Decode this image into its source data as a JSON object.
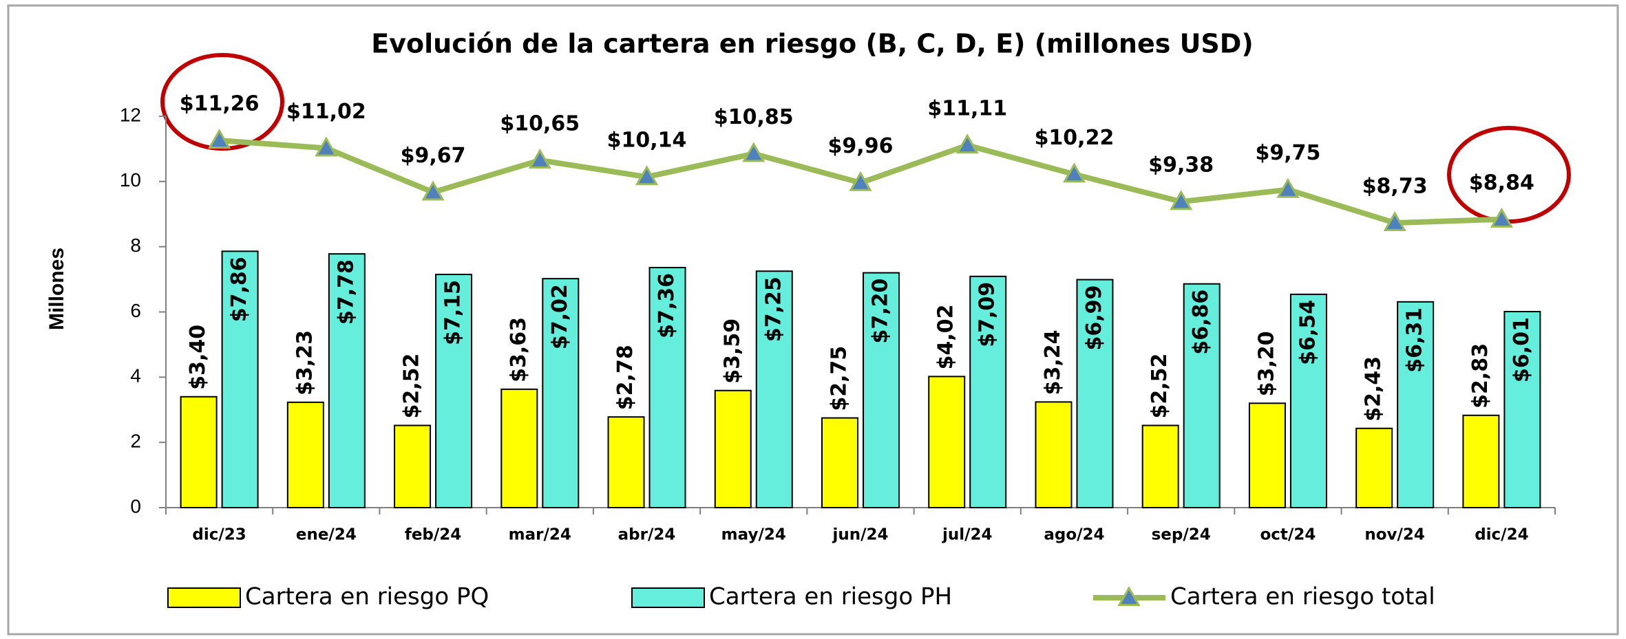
{
  "chart_data": {
    "type": "bar_line",
    "title": "Evolución de la cartera en riesgo (B, C, D, E) (millones USD)",
    "y_label": "Millones",
    "categories": [
      "dic/23",
      "ene/24",
      "feb/24",
      "mar/24",
      "abr/24",
      "may/24",
      "jun/24",
      "jul/24",
      "ago/24",
      "sep/24",
      "oct/24",
      "nov/24",
      "dic/24"
    ],
    "ylim": [
      0,
      12
    ],
    "yticks": [
      0,
      2,
      4,
      6,
      8,
      10,
      12
    ],
    "grid": false,
    "legend": "bottom",
    "series": [
      {
        "name": "Cartera en riesgo PQ",
        "type": "bar",
        "color": "#ffff00",
        "values": [
          3.4,
          3.23,
          2.52,
          3.63,
          2.78,
          3.59,
          2.75,
          4.02,
          3.24,
          2.52,
          3.2,
          2.43,
          2.83
        ],
        "value_labels": [
          "$3,40",
          "$3,23",
          "$2,52",
          "$3,63",
          "$2,78",
          "$3,59",
          "$2,75",
          "$4,02",
          "$3,24",
          "$2,52",
          "$3,20",
          "$2,43",
          "$2,83"
        ]
      },
      {
        "name": "Cartera en riesgo PH",
        "type": "bar",
        "color": "#66eedc",
        "values": [
          7.86,
          7.78,
          7.15,
          7.02,
          7.36,
          7.25,
          7.2,
          7.09,
          6.99,
          6.86,
          6.54,
          6.31,
          6.01
        ],
        "value_labels": [
          "$7,86",
          "$7,78",
          "$7,15",
          "$7,02",
          "$7,36",
          "$7,25",
          "$7,20",
          "$7,09",
          "$6,99",
          "$6,86",
          "$6,54",
          "$6,31",
          "$6,01"
        ]
      },
      {
        "name": "Cartera en riesgo total",
        "type": "line",
        "color": "#9bbb59",
        "marker_color": "#4f81bd",
        "values": [
          11.26,
          11.02,
          9.67,
          10.65,
          10.14,
          10.85,
          9.96,
          11.11,
          10.22,
          9.38,
          9.75,
          8.73,
          8.84
        ],
        "value_labels": [
          "$11,26",
          "$11,02",
          "$9,67",
          "$10,65",
          "$10,14",
          "$10,85",
          "$9,96",
          "$11,11",
          "$10,22",
          "$9,38",
          "$9,75",
          "$8,73",
          "$8,84"
        ]
      }
    ]
  }
}
